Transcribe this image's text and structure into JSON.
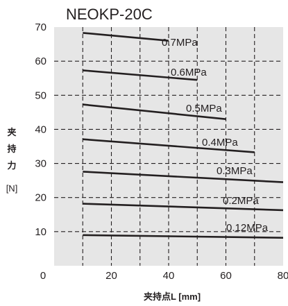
{
  "chart_data": {
    "type": "line",
    "title": "NEOKP-20C",
    "xlabel": "夹持点L [mm]",
    "ylabel_chars": [
      "夹",
      "持",
      "力"
    ],
    "ylabel_unit": "[N]",
    "xlim": [
      0,
      80
    ],
    "ylim": [
      0,
      70
    ],
    "x_ticks": [
      0,
      20,
      40,
      60,
      80
    ],
    "y_ticks": [
      10,
      20,
      30,
      40,
      50,
      60,
      70
    ],
    "grid": true,
    "colors": {
      "background": "#e6e6e6",
      "line": "#231f20",
      "grid": "#231f20"
    },
    "series": [
      {
        "name": "0.7MPa",
        "x": [
          10,
          40
        ],
        "y": [
          68.3,
          66.0
        ]
      },
      {
        "name": "0.6MPa",
        "x": [
          10,
          50
        ],
        "y": [
          57.3,
          54.5
        ]
      },
      {
        "name": "0.5MPa",
        "x": [
          10,
          60
        ],
        "y": [
          47.3,
          43.0
        ]
      },
      {
        "name": "0.4MPa",
        "x": [
          10,
          70
        ],
        "y": [
          37.1,
          33.3
        ]
      },
      {
        "name": "0.3MPa",
        "x": [
          10,
          80
        ],
        "y": [
          27.6,
          24.5
        ]
      },
      {
        "name": "0.2MPa",
        "x": [
          10,
          80
        ],
        "y": [
          18.2,
          16.3
        ]
      },
      {
        "name": "0.12MPa",
        "x": [
          10,
          80
        ],
        "y": [
          9.0,
          8.2
        ]
      }
    ]
  }
}
